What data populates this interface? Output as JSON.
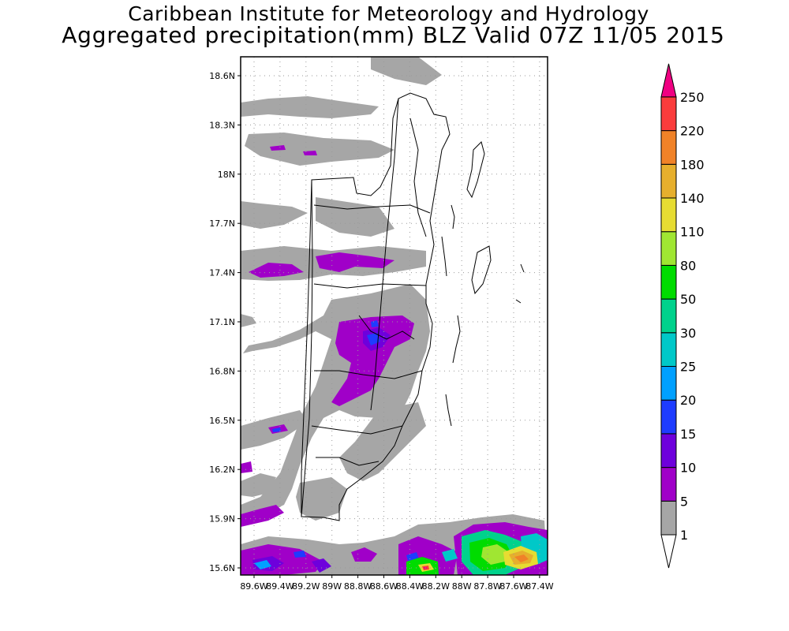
{
  "header": {
    "title": "Caribbean Institute for Meteorology and Hydrology",
    "subtitle": "Aggregated precipitation(mm) BLZ Valid 07Z 11/05 2015"
  },
  "map": {
    "lat_ticks": [
      "18.6N",
      "18.3N",
      "18N",
      "17.7N",
      "17.4N",
      "17.1N",
      "16.8N",
      "16.5N",
      "16.2N",
      "15.9N",
      "15.6N"
    ],
    "lon_ticks": [
      "89.6W",
      "89.4W",
      "89.2W",
      "89W",
      "88.8W",
      "88.6W",
      "88.4W",
      "88.2W",
      "88W",
      "87.8W",
      "87.6W",
      "87.4W"
    ],
    "grid": true
  },
  "colorbar": {
    "levels": [
      {
        "label": "1",
        "color": "#ffffff"
      },
      {
        "label": "5",
        "color": "#a6a6a6"
      },
      {
        "label": "10",
        "color": "#a000c8"
      },
      {
        "label": "15",
        "color": "#6e00dc"
      },
      {
        "label": "20",
        "color": "#1e3cff"
      },
      {
        "label": "25",
        "color": "#00a0ff"
      },
      {
        "label": "30",
        "color": "#00c8c8"
      },
      {
        "label": "50",
        "color": "#00d28c"
      },
      {
        "label": "80",
        "color": "#00dc00"
      },
      {
        "label": "110",
        "color": "#a0e632"
      },
      {
        "label": "140",
        "color": "#e6dc32"
      },
      {
        "label": "180",
        "color": "#e6af2d"
      },
      {
        "label": "220",
        "color": "#f08228"
      },
      {
        "label": "250",
        "color": "#fa3c3c"
      }
    ],
    "top_color": "#f00082"
  }
}
